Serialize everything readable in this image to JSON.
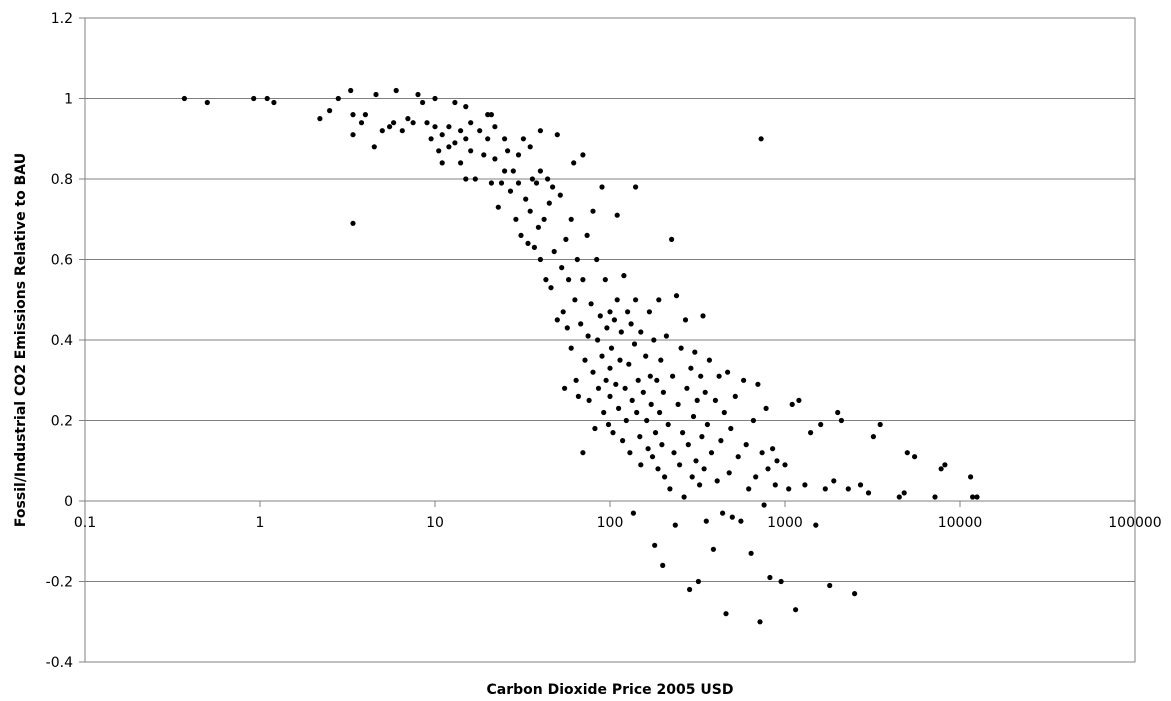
{
  "chart_data": {
    "type": "scatter",
    "title": "",
    "xlabel": "Carbon Dioxide Price 2005 USD",
    "ylabel": "Fossil/Industrial CO2 Emissions Relative to BAU",
    "xscale": "log",
    "xlim": [
      0.1,
      100000
    ],
    "ylim": [
      -0.4,
      1.2
    ],
    "x_ticks": [
      0.1,
      1,
      10,
      100,
      1000,
      10000,
      100000
    ],
    "x_tick_labels": [
      "0.1",
      "1",
      "10",
      "100",
      "1000",
      "10000",
      "100000"
    ],
    "y_ticks": [
      -0.4,
      -0.2,
      0,
      0.2,
      0.4,
      0.6,
      0.8,
      1,
      1.2
    ],
    "y_tick_labels": [
      "-0.4",
      "-0.2",
      "0",
      "0.2",
      "0.4",
      "0.6",
      "0.8",
      "1",
      "1.2"
    ],
    "grid": "horizontal",
    "legend": "none",
    "colors": {
      "marker": "#000000",
      "gridline": "#808080",
      "frame": "#808080"
    },
    "points": [
      [
        0.37,
        1.0
      ],
      [
        0.5,
        0.99
      ],
      [
        0.92,
        1.0
      ],
      [
        1.1,
        1.0
      ],
      [
        1.2,
        0.99
      ],
      [
        2.2,
        0.95
      ],
      [
        2.5,
        0.97
      ],
      [
        2.8,
        1.0
      ],
      [
        3.3,
        1.02
      ],
      [
        3.4,
        0.96
      ],
      [
        3.4,
        0.91
      ],
      [
        3.4,
        0.69
      ],
      [
        3.8,
        0.94
      ],
      [
        4.0,
        0.96
      ],
      [
        4.5,
        0.88
      ],
      [
        4.6,
        1.01
      ],
      [
        5.0,
        0.92
      ],
      [
        5.5,
        0.93
      ],
      [
        5.8,
        0.94
      ],
      [
        6.0,
        1.02
      ],
      [
        6.5,
        0.92
      ],
      [
        7.0,
        0.95
      ],
      [
        7.5,
        0.94
      ],
      [
        8.0,
        1.01
      ],
      [
        8.5,
        0.99
      ],
      [
        9.0,
        0.94
      ],
      [
        9.5,
        0.9
      ],
      [
        10,
        1.0
      ],
      [
        10,
        0.93
      ],
      [
        10.5,
        0.87
      ],
      [
        11,
        0.91
      ],
      [
        11,
        0.84
      ],
      [
        12,
        0.93
      ],
      [
        12,
        0.88
      ],
      [
        13,
        0.99
      ],
      [
        13,
        0.89
      ],
      [
        14,
        0.92
      ],
      [
        14,
        0.84
      ],
      [
        15,
        0.98
      ],
      [
        15,
        0.9
      ],
      [
        15,
        0.8
      ],
      [
        16,
        0.87
      ],
      [
        16,
        0.94
      ],
      [
        17,
        0.8
      ],
      [
        18,
        0.92
      ],
      [
        19,
        0.86
      ],
      [
        20,
        0.96
      ],
      [
        20,
        0.9
      ],
      [
        21,
        0.79
      ],
      [
        21,
        0.96
      ],
      [
        22,
        0.93
      ],
      [
        22,
        0.85
      ],
      [
        23,
        0.73
      ],
      [
        24,
        0.79
      ],
      [
        25,
        0.9
      ],
      [
        25,
        0.82
      ],
      [
        26,
        0.87
      ],
      [
        27,
        0.77
      ],
      [
        28,
        0.82
      ],
      [
        29,
        0.7
      ],
      [
        30,
        0.86
      ],
      [
        30,
        0.79
      ],
      [
        31,
        0.66
      ],
      [
        32,
        0.9
      ],
      [
        33,
        0.75
      ],
      [
        34,
        0.64
      ],
      [
        35,
        0.88
      ],
      [
        35,
        0.72
      ],
      [
        36,
        0.8
      ],
      [
        37,
        0.63
      ],
      [
        38,
        0.79
      ],
      [
        39,
        0.68
      ],
      [
        40,
        0.92
      ],
      [
        40,
        0.82
      ],
      [
        40,
        0.6
      ],
      [
        42,
        0.7
      ],
      [
        43,
        0.55
      ],
      [
        44,
        0.8
      ],
      [
        45,
        0.74
      ],
      [
        46,
        0.53
      ],
      [
        47,
        0.78
      ],
      [
        48,
        0.62
      ],
      [
        50,
        0.91
      ],
      [
        50,
        0.45
      ],
      [
        52,
        0.76
      ],
      [
        53,
        0.58
      ],
      [
        54,
        0.47
      ],
      [
        55,
        0.28
      ],
      [
        56,
        0.65
      ],
      [
        57,
        0.43
      ],
      [
        58,
        0.55
      ],
      [
        60,
        0.7
      ],
      [
        60,
        0.38
      ],
      [
        62,
        0.84
      ],
      [
        63,
        0.5
      ],
      [
        64,
        0.3
      ],
      [
        65,
        0.6
      ],
      [
        66,
        0.26
      ],
      [
        68,
        0.44
      ],
      [
        70,
        0.86
      ],
      [
        70,
        0.55
      ],
      [
        70,
        0.12
      ],
      [
        72,
        0.35
      ],
      [
        74,
        0.66
      ],
      [
        75,
        0.41
      ],
      [
        76,
        0.25
      ],
      [
        78,
        0.49
      ],
      [
        80,
        0.72
      ],
      [
        80,
        0.32
      ],
      [
        82,
        0.18
      ],
      [
        84,
        0.6
      ],
      [
        85,
        0.4
      ],
      [
        86,
        0.28
      ],
      [
        88,
        0.46
      ],
      [
        90,
        0.78
      ],
      [
        90,
        0.36
      ],
      [
        92,
        0.22
      ],
      [
        94,
        0.55
      ],
      [
        95,
        0.3
      ],
      [
        96,
        0.43
      ],
      [
        98,
        0.19
      ],
      [
        100,
        0.47
      ],
      [
        100,
        0.33
      ],
      [
        100,
        0.26
      ],
      [
        102,
        0.38
      ],
      [
        104,
        0.17
      ],
      [
        106,
        0.45
      ],
      [
        108,
        0.29
      ],
      [
        110,
        0.71
      ],
      [
        110,
        0.5
      ],
      [
        112,
        0.23
      ],
      [
        114,
        0.35
      ],
      [
        116,
        0.42
      ],
      [
        118,
        0.15
      ],
      [
        120,
        0.56
      ],
      [
        122,
        0.28
      ],
      [
        124,
        0.2
      ],
      [
        126,
        0.47
      ],
      [
        128,
        0.34
      ],
      [
        130,
        0.12
      ],
      [
        132,
        0.44
      ],
      [
        134,
        0.25
      ],
      [
        136,
        -0.03
      ],
      [
        138,
        0.39
      ],
      [
        140,
        0.78
      ],
      [
        140,
        0.5
      ],
      [
        142,
        0.22
      ],
      [
        145,
        0.3
      ],
      [
        148,
        0.16
      ],
      [
        150,
        0.42
      ],
      [
        150,
        0.09
      ],
      [
        155,
        0.27
      ],
      [
        160,
        0.36
      ],
      [
        162,
        0.2
      ],
      [
        165,
        0.13
      ],
      [
        168,
        0.47
      ],
      [
        170,
        0.31
      ],
      [
        172,
        0.24
      ],
      [
        175,
        0.11
      ],
      [
        178,
        0.4
      ],
      [
        180,
        -0.11
      ],
      [
        182,
        0.17
      ],
      [
        185,
        0.3
      ],
      [
        188,
        0.08
      ],
      [
        190,
        0.5
      ],
      [
        192,
        0.22
      ],
      [
        195,
        0.35
      ],
      [
        198,
        0.14
      ],
      [
        200,
        -0.16
      ],
      [
        202,
        0.27
      ],
      [
        205,
        0.06
      ],
      [
        210,
        0.41
      ],
      [
        215,
        0.19
      ],
      [
        220,
        0.03
      ],
      [
        225,
        0.65
      ],
      [
        228,
        0.31
      ],
      [
        232,
        0.12
      ],
      [
        236,
        -0.06
      ],
      [
        240,
        0.51
      ],
      [
        245,
        0.24
      ],
      [
        250,
        0.09
      ],
      [
        255,
        0.38
      ],
      [
        260,
        0.17
      ],
      [
        265,
        0.01
      ],
      [
        270,
        0.45
      ],
      [
        275,
        0.28
      ],
      [
        280,
        0.14
      ],
      [
        285,
        -0.22
      ],
      [
        290,
        0.33
      ],
      [
        295,
        0.06
      ],
      [
        300,
        0.21
      ],
      [
        305,
        0.37
      ],
      [
        310,
        0.1
      ],
      [
        315,
        0.25
      ],
      [
        320,
        -0.2
      ],
      [
        325,
        0.04
      ],
      [
        330,
        0.31
      ],
      [
        335,
        0.16
      ],
      [
        340,
        0.46
      ],
      [
        345,
        0.08
      ],
      [
        350,
        0.27
      ],
      [
        355,
        -0.05
      ],
      [
        360,
        0.19
      ],
      [
        370,
        0.35
      ],
      [
        380,
        0.12
      ],
      [
        390,
        -0.12
      ],
      [
        400,
        0.25
      ],
      [
        410,
        0.05
      ],
      [
        420,
        0.31
      ],
      [
        430,
        0.15
      ],
      [
        440,
        -0.03
      ],
      [
        450,
        0.22
      ],
      [
        460,
        -0.28
      ],
      [
        470,
        0.32
      ],
      [
        480,
        0.07
      ],
      [
        490,
        0.18
      ],
      [
        500,
        -0.04
      ],
      [
        520,
        0.26
      ],
      [
        540,
        0.11
      ],
      [
        560,
        -0.05
      ],
      [
        580,
        0.3
      ],
      [
        600,
        0.14
      ],
      [
        620,
        0.03
      ],
      [
        640,
        -0.13
      ],
      [
        660,
        0.2
      ],
      [
        680,
        0.06
      ],
      [
        700,
        0.29
      ],
      [
        720,
        -0.3
      ],
      [
        730,
        0.9
      ],
      [
        740,
        0.12
      ],
      [
        760,
        -0.01
      ],
      [
        780,
        0.23
      ],
      [
        800,
        0.08
      ],
      [
        820,
        -0.19
      ],
      [
        850,
        0.13
      ],
      [
        880,
        0.04
      ],
      [
        900,
        0.1
      ],
      [
        950,
        -0.2
      ],
      [
        1000,
        0.09
      ],
      [
        1050,
        0.03
      ],
      [
        1100,
        0.24
      ],
      [
        1150,
        -0.27
      ],
      [
        1200,
        0.25
      ],
      [
        1300,
        0.04
      ],
      [
        1400,
        0.17
      ],
      [
        1500,
        -0.06
      ],
      [
        1600,
        0.19
      ],
      [
        1700,
        0.03
      ],
      [
        1800,
        -0.21
      ],
      [
        1900,
        0.05
      ],
      [
        2000,
        0.22
      ],
      [
        2100,
        0.2
      ],
      [
        2300,
        0.03
      ],
      [
        2500,
        -0.23
      ],
      [
        2700,
        0.04
      ],
      [
        3000,
        0.02
      ],
      [
        3200,
        0.16
      ],
      [
        3500,
        0.19
      ],
      [
        4500,
        0.01
      ],
      [
        4800,
        0.02
      ],
      [
        5000,
        0.12
      ],
      [
        5500,
        0.11
      ],
      [
        7200,
        0.01
      ],
      [
        7800,
        0.08
      ],
      [
        8200,
        0.09
      ],
      [
        11500,
        0.06
      ],
      [
        11800,
        0.01
      ],
      [
        12500,
        0.01
      ]
    ]
  }
}
